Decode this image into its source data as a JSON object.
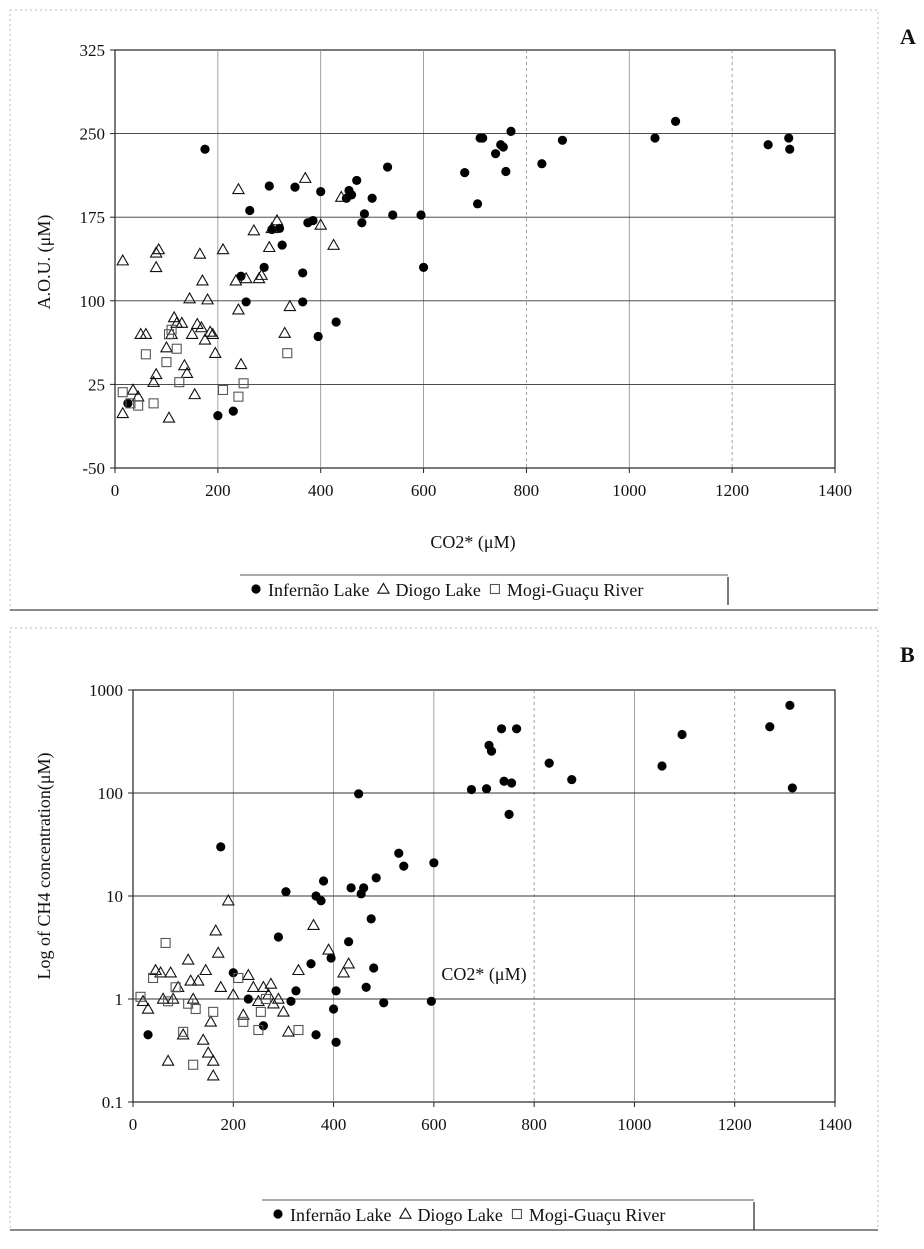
{
  "chart_data": [
    {
      "type": "scatter",
      "panel_label": "A",
      "xlabel": "CO2* (μM)",
      "ylabel": "A.O.U. (μM)",
      "xlim": [
        0,
        1400
      ],
      "ylim": [
        -50,
        325
      ],
      "xticks": [
        "0",
        "200",
        "400",
        "600",
        "800",
        "1000",
        "1200",
        "1400"
      ],
      "yticks": [
        "-50",
        "25",
        "100",
        "175",
        "250",
        "325"
      ],
      "grid": true,
      "legend_position": "bottom",
      "series": [
        {
          "name": "Infernão Lake",
          "marker": "filled-circle",
          "points": [
            [
              25,
              8
            ],
            [
              175,
              236
            ],
            [
              200,
              -3
            ],
            [
              230,
              1
            ],
            [
              245,
              122
            ],
            [
              255,
              99
            ],
            [
              262,
              181
            ],
            [
              290,
              130
            ],
            [
              300,
              203
            ],
            [
              305,
              164
            ],
            [
              320,
              165
            ],
            [
              325,
              150
            ],
            [
              350,
              202
            ],
            [
              365,
              99
            ],
            [
              365,
              125
            ],
            [
              375,
              170
            ],
            [
              385,
              172
            ],
            [
              395,
              68
            ],
            [
              400,
              198
            ],
            [
              430,
              81
            ],
            [
              450,
              192
            ],
            [
              455,
              199
            ],
            [
              460,
              195
            ],
            [
              470,
              208
            ],
            [
              480,
              170
            ],
            [
              485,
              178
            ],
            [
              500,
              192
            ],
            [
              530,
              220
            ],
            [
              540,
              177
            ],
            [
              595,
              177
            ],
            [
              600,
              130
            ],
            [
              680,
              215
            ],
            [
              705,
              187
            ],
            [
              710,
              246
            ],
            [
              715,
              246
            ],
            [
              740,
              232
            ],
            [
              750,
              240
            ],
            [
              755,
              238
            ],
            [
              760,
              216
            ],
            [
              770,
              252
            ],
            [
              830,
              223
            ],
            [
              870,
              244
            ],
            [
              1050,
              246
            ],
            [
              1090,
              261
            ],
            [
              1270,
              240
            ],
            [
              1310,
              246
            ],
            [
              1312,
              236
            ]
          ]
        },
        {
          "name": "Diogo Lake",
          "marker": "open-triangle",
          "points": [
            [
              15,
              136
            ],
            [
              15,
              -1
            ],
            [
              35,
              20
            ],
            [
              45,
              14
            ],
            [
              50,
              70
            ],
            [
              60,
              70
            ],
            [
              75,
              27
            ],
            [
              80,
              143
            ],
            [
              80,
              130
            ],
            [
              80,
              34
            ],
            [
              85,
              146
            ],
            [
              100,
              58
            ],
            [
              105,
              -5
            ],
            [
              110,
              70
            ],
            [
              115,
              85
            ],
            [
              120,
              80
            ],
            [
              130,
              80
            ],
            [
              135,
              42
            ],
            [
              140,
              35
            ],
            [
              145,
              102
            ],
            [
              150,
              70
            ],
            [
              155,
              16
            ],
            [
              160,
              79
            ],
            [
              165,
              142
            ],
            [
              168,
              76
            ],
            [
              170,
              118
            ],
            [
              175,
              65
            ],
            [
              180,
              101
            ],
            [
              185,
              72
            ],
            [
              190,
              70
            ],
            [
              195,
              53
            ],
            [
              210,
              146
            ],
            [
              235,
              118
            ],
            [
              240,
              200
            ],
            [
              240,
              92
            ],
            [
              245,
              43
            ],
            [
              255,
              120
            ],
            [
              270,
              163
            ],
            [
              280,
              120
            ],
            [
              285,
              123
            ],
            [
              300,
              148
            ],
            [
              305,
              165
            ],
            [
              315,
              172
            ],
            [
              330,
              71
            ],
            [
              340,
              95
            ],
            [
              370,
              210
            ],
            [
              400,
              168
            ],
            [
              425,
              150
            ],
            [
              440,
              193
            ]
          ]
        },
        {
          "name": "Mogi-Guaçu River",
          "marker": "open-square",
          "points": [
            [
              15,
              18
            ],
            [
              30,
              8
            ],
            [
              45,
              6
            ],
            [
              60,
              52
            ],
            [
              75,
              8
            ],
            [
              100,
              45
            ],
            [
              105,
              70
            ],
            [
              110,
              74
            ],
            [
              120,
              57
            ],
            [
              125,
              27
            ],
            [
              210,
              20
            ],
            [
              240,
              14
            ],
            [
              250,
              26
            ],
            [
              335,
              53
            ]
          ]
        }
      ]
    },
    {
      "type": "scatter",
      "panel_label": "B",
      "xlabel": "CO2* (μM)",
      "ylabel": "Log of CH4 concentration(μM)",
      "xlim": [
        0,
        1400
      ],
      "ylim": [
        0.1,
        1000
      ],
      "yscale": "log",
      "xticks": [
        "0",
        "200",
        "400",
        "600",
        "800",
        "1000",
        "1200",
        "1400"
      ],
      "yticks": [
        "0.1",
        "1",
        "10",
        "100",
        "1000"
      ],
      "grid": true,
      "legend_position": "bottom",
      "series": [
        {
          "name": "Infernão Lake",
          "marker": "filled-circle",
          "points": [
            [
              30,
              0.45
            ],
            [
              175,
              30
            ],
            [
              200,
              1.8
            ],
            [
              230,
              1.0
            ],
            [
              260,
              0.55
            ],
            [
              290,
              4.0
            ],
            [
              305,
              11
            ],
            [
              315,
              0.95
            ],
            [
              325,
              1.2
            ],
            [
              355,
              2.2
            ],
            [
              365,
              0.45
            ],
            [
              365,
              10
            ],
            [
              375,
              9
            ],
            [
              380,
              14
            ],
            [
              395,
              2.5
            ],
            [
              400,
              0.8
            ],
            [
              405,
              1.2
            ],
            [
              405,
              0.38
            ],
            [
              430,
              3.6
            ],
            [
              435,
              12
            ],
            [
              450,
              98
            ],
            [
              455,
              10.5
            ],
            [
              460,
              12
            ],
            [
              465,
              1.3
            ],
            [
              475,
              6
            ],
            [
              480,
              2.0
            ],
            [
              485,
              15
            ],
            [
              500,
              0.92
            ],
            [
              530,
              26
            ],
            [
              540,
              19.5
            ],
            [
              595,
              0.95
            ],
            [
              600,
              21
            ],
            [
              675,
              108
            ],
            [
              705,
              110
            ],
            [
              710,
              290
            ],
            [
              715,
              255
            ],
            [
              735,
              420
            ],
            [
              740,
              130
            ],
            [
              750,
              62
            ],
            [
              755,
              125
            ],
            [
              765,
              420
            ],
            [
              830,
              195
            ],
            [
              875,
              135
            ],
            [
              1055,
              183
            ],
            [
              1095,
              370
            ],
            [
              1270,
              440
            ],
            [
              1310,
              710
            ],
            [
              1315,
              112
            ]
          ]
        },
        {
          "name": "Diogo Lake",
          "marker": "open-triangle",
          "points": [
            [
              20,
              0.95
            ],
            [
              30,
              0.8
            ],
            [
              45,
              1.9
            ],
            [
              55,
              1.8
            ],
            [
              60,
              1.0
            ],
            [
              70,
              0.25
            ],
            [
              75,
              1.8
            ],
            [
              80,
              1.0
            ],
            [
              90,
              1.3
            ],
            [
              100,
              0.45
            ],
            [
              110,
              2.4
            ],
            [
              115,
              1.5
            ],
            [
              120,
              1.0
            ],
            [
              130,
              1.5
            ],
            [
              140,
              0.4
            ],
            [
              145,
              1.9
            ],
            [
              150,
              0.3
            ],
            [
              155,
              0.6
            ],
            [
              160,
              0.25
            ],
            [
              160,
              0.18
            ],
            [
              165,
              4.6
            ],
            [
              170,
              2.8
            ],
            [
              175,
              1.3
            ],
            [
              190,
              9
            ],
            [
              200,
              1.1
            ],
            [
              220,
              0.7
            ],
            [
              230,
              1.7
            ],
            [
              240,
              1.3
            ],
            [
              250,
              0.95
            ],
            [
              260,
              1.3
            ],
            [
              270,
              1.1
            ],
            [
              275,
              1.4
            ],
            [
              280,
              0.9
            ],
            [
              290,
              1.0
            ],
            [
              300,
              0.75
            ],
            [
              310,
              0.48
            ],
            [
              330,
              1.9
            ],
            [
              360,
              5.2
            ],
            [
              390,
              3.0
            ],
            [
              420,
              1.8
            ],
            [
              430,
              2.2
            ]
          ]
        },
        {
          "name": "Mogi-Guaçu River",
          "marker": "open-square",
          "points": [
            [
              15,
              1.05
            ],
            [
              40,
              1.6
            ],
            [
              65,
              3.5
            ],
            [
              70,
              0.95
            ],
            [
              85,
              1.3
            ],
            [
              100,
              0.48
            ],
            [
              110,
              0.9
            ],
            [
              120,
              0.23
            ],
            [
              125,
              0.8
            ],
            [
              160,
              0.75
            ],
            [
              210,
              1.6
            ],
            [
              220,
              0.6
            ],
            [
              250,
              0.5
            ],
            [
              255,
              0.75
            ],
            [
              265,
              1.0
            ],
            [
              330,
              0.5
            ]
          ]
        }
      ]
    }
  ]
}
